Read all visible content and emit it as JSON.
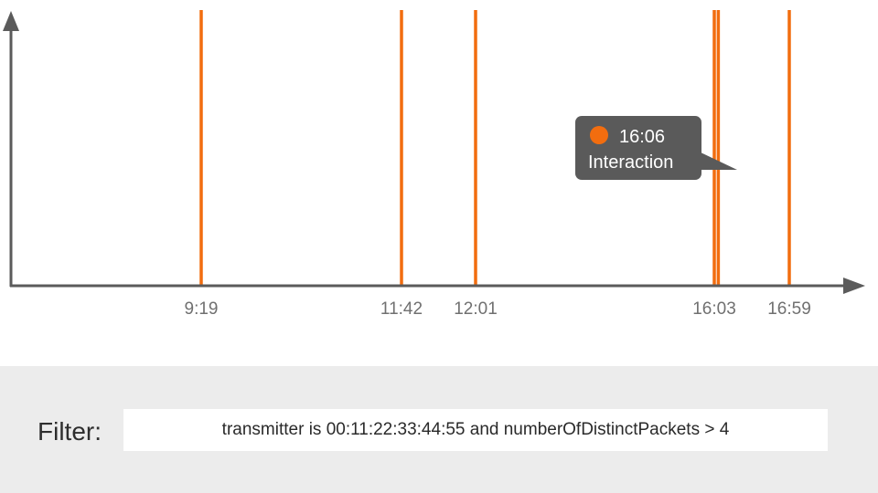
{
  "chart_data": {
    "type": "timeline",
    "x_axis": {
      "ticks": [
        "9:19",
        "11:42",
        "12:01",
        "16:03",
        "16:59"
      ]
    },
    "events": [
      {
        "time": "9:19",
        "labeled": true
      },
      {
        "time": "11:42",
        "labeled": true
      },
      {
        "time": "12:01",
        "labeled": true
      },
      {
        "time": "16:03",
        "labeled": true
      },
      {
        "time": "16:06",
        "labeled": false
      },
      {
        "time": "16:59",
        "labeled": true
      }
    ],
    "tooltip": {
      "time": "16:06",
      "type": "Interaction"
    }
  },
  "colors": {
    "event": "#f26d0f",
    "axis": "#5b5b5b",
    "tooltip_bg": "#5a5a5a",
    "tick_text": "#707070",
    "panel_bg": "#ececec"
  },
  "filter": {
    "label": "Filter:",
    "value": "transmitter is 00:11:22:33:44:55 and numberOfDistinctPackets > 4"
  }
}
